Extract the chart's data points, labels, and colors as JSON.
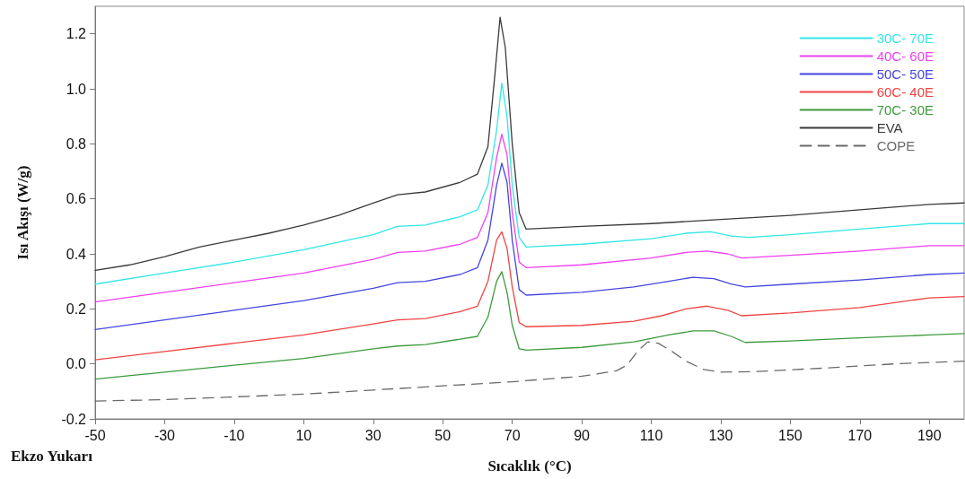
{
  "chart_data": {
    "type": "line",
    "xlabel": "Sıcaklık (°C)",
    "ylabel": "Isı Akışı (W/g)",
    "annotations": [
      "Ekzo Yukarı"
    ],
    "xlim": [
      -50,
      200
    ],
    "xticks": [
      -50,
      -30,
      -10,
      10,
      30,
      50,
      70,
      90,
      110,
      130,
      150,
      170,
      190
    ],
    "ylim": [
      -0.2,
      1.3
    ],
    "yticks": [
      {
        "value": -0.2,
        "label": "-0.2"
      },
      {
        "value": 0,
        "label": "0.0"
      },
      0.2,
      0.4,
      0.6,
      0.8,
      {
        "value": 1,
        "label": "1.0"
      },
      1.2
    ],
    "grid": false,
    "legend": "top right",
    "marker": "none",
    "series": [
      {
        "name": "30C- 70E",
        "color": "#33e6e6",
        "x": [
          -50,
          -30,
          -10,
          10,
          30,
          37,
          45,
          55,
          60,
          63,
          65.5,
          67,
          68.5,
          70,
          72,
          74,
          90,
          110,
          120,
          127,
          133,
          138,
          150,
          170,
          190,
          200
        ],
        "values": [
          0.29,
          0.33,
          0.37,
          0.415,
          0.47,
          0.5,
          0.505,
          0.535,
          0.56,
          0.65,
          0.85,
          1.02,
          0.9,
          0.65,
          0.46,
          0.425,
          0.435,
          0.455,
          0.475,
          0.48,
          0.465,
          0.46,
          0.47,
          0.49,
          0.51,
          0.51
        ]
      },
      {
        "name": "40C- 60E",
        "color": "#f040f0",
        "x": [
          -50,
          -30,
          -10,
          10,
          30,
          37,
          45,
          55,
          60,
          63,
          65.5,
          67,
          68.5,
          70,
          72,
          74,
          90,
          110,
          120,
          126,
          132,
          136,
          150,
          170,
          190,
          200
        ],
        "values": [
          0.225,
          0.26,
          0.295,
          0.33,
          0.38,
          0.405,
          0.41,
          0.435,
          0.46,
          0.55,
          0.75,
          0.835,
          0.76,
          0.55,
          0.37,
          0.35,
          0.36,
          0.385,
          0.405,
          0.41,
          0.4,
          0.385,
          0.395,
          0.41,
          0.43,
          0.43
        ]
      },
      {
        "name": "50C- 50E",
        "color": "#4545e0",
        "x": [
          -50,
          -30,
          -10,
          10,
          30,
          37,
          45,
          55,
          60,
          63,
          65.5,
          67,
          68.5,
          70,
          72,
          74,
          90,
          105,
          115,
          122,
          128,
          133,
          137,
          150,
          170,
          190,
          200
        ],
        "values": [
          0.125,
          0.16,
          0.195,
          0.23,
          0.275,
          0.295,
          0.3,
          0.325,
          0.35,
          0.45,
          0.65,
          0.73,
          0.66,
          0.45,
          0.27,
          0.25,
          0.26,
          0.28,
          0.3,
          0.315,
          0.31,
          0.29,
          0.28,
          0.29,
          0.305,
          0.325,
          0.33
        ]
      },
      {
        "name": "60C- 40E",
        "color": "#ee4444",
        "x": [
          -50,
          -30,
          -10,
          10,
          30,
          37,
          45,
          55,
          60,
          63,
          65.5,
          67,
          68.5,
          70,
          72,
          74,
          90,
          105,
          113,
          120,
          126,
          132,
          136,
          150,
          170,
          190,
          200
        ],
        "values": [
          0.015,
          0.045,
          0.075,
          0.105,
          0.145,
          0.16,
          0.165,
          0.19,
          0.21,
          0.3,
          0.45,
          0.48,
          0.42,
          0.28,
          0.15,
          0.135,
          0.14,
          0.155,
          0.175,
          0.2,
          0.21,
          0.195,
          0.175,
          0.185,
          0.205,
          0.24,
          0.245
        ]
      },
      {
        "name": "70C- 30E",
        "color": "#3d9a3d",
        "x": [
          -50,
          -30,
          -10,
          10,
          30,
          37,
          45,
          55,
          60,
          63,
          65.5,
          67,
          68.5,
          70,
          72,
          74,
          90,
          105,
          115,
          122,
          128,
          133,
          137,
          150,
          170,
          190,
          200
        ],
        "values": [
          -0.055,
          -0.03,
          -0.005,
          0.02,
          0.055,
          0.065,
          0.07,
          0.09,
          0.1,
          0.17,
          0.3,
          0.335,
          0.26,
          0.14,
          0.055,
          0.05,
          0.06,
          0.08,
          0.105,
          0.12,
          0.12,
          0.1,
          0.078,
          0.083,
          0.095,
          0.105,
          0.11
        ]
      },
      {
        "name": "EVA",
        "color": "#3a3a3a",
        "x": [
          -50,
          -40,
          -30,
          -20,
          -10,
          0,
          10,
          20,
          30,
          37,
          45,
          55,
          60,
          63,
          65,
          66.5,
          68,
          70,
          72,
          74,
          90,
          110,
          130,
          150,
          170,
          190,
          200
        ],
        "values": [
          0.34,
          0.36,
          0.39,
          0.425,
          0.45,
          0.475,
          0.505,
          0.54,
          0.585,
          0.615,
          0.625,
          0.66,
          0.69,
          0.79,
          1.05,
          1.26,
          1.15,
          0.8,
          0.55,
          0.49,
          0.5,
          0.51,
          0.525,
          0.54,
          0.56,
          0.58,
          0.585
        ]
      },
      {
        "name": "COPE",
        "color": "#6a6a6a",
        "line_style": "dashed",
        "x": [
          -50,
          -30,
          -10,
          10,
          30,
          50,
          70,
          90,
          100,
          103,
          106,
          109,
          112,
          116,
          120,
          125,
          130,
          140,
          160,
          180,
          190,
          200
        ],
        "values": [
          -0.135,
          -0.13,
          -0.12,
          -0.11,
          -0.095,
          -0.08,
          -0.065,
          -0.045,
          -0.025,
          -0.005,
          0.045,
          0.08,
          0.075,
          0.045,
          0.01,
          -0.02,
          -0.03,
          -0.028,
          -0.015,
          0,
          0.005,
          0.01
        ]
      }
    ]
  }
}
